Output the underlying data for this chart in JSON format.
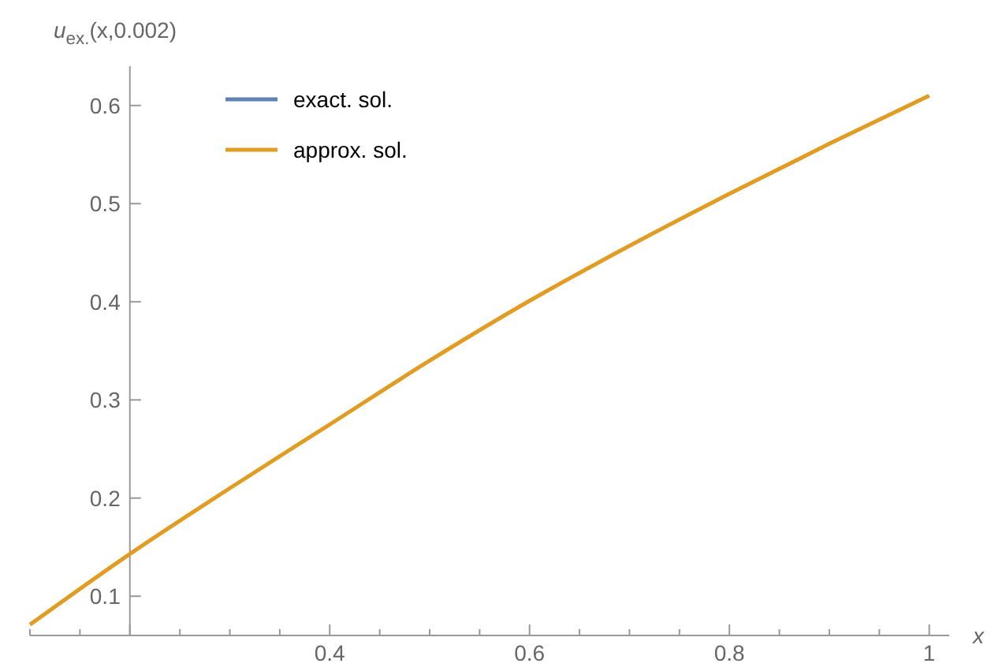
{
  "chart_data": {
    "type": "line",
    "xlabel": "x",
    "ylabel": "u$_{ex.}$(x,0.002)",
    "x": [
      0.1,
      0.2,
      0.3,
      0.4,
      0.5,
      0.6,
      0.7,
      0.8,
      0.9,
      1.0
    ],
    "series": [
      {
        "name": "exact. sol.",
        "color": "#5e81b5",
        "values": [
          null,
          null,
          null,
          null,
          null,
          null,
          null,
          null,
          null,
          null
        ]
      },
      {
        "name": "approx. sol.",
        "color": "#e19c24",
        "values": [
          0.071,
          0.143,
          0.21,
          0.275,
          0.34,
          0.401,
          0.457,
          0.51,
          0.561,
          0.61
        ]
      }
    ],
    "xlim": [
      0.1,
      1.02
    ],
    "ylim": [
      0.06,
      0.64
    ],
    "xticks": [
      {
        "value": 0.2,
        "label": null
      },
      0.4,
      0.6,
      0.8,
      1.0,
      {
        "value": 0.1,
        "label": null
      },
      {
        "value": 0.15,
        "label": null
      },
      {
        "value": 0.25,
        "label": null
      },
      {
        "value": 0.3,
        "label": null
      },
      {
        "value": 0.35,
        "label": null
      },
      {
        "value": 0.45,
        "label": null
      },
      {
        "value": 0.5,
        "label": null
      },
      {
        "value": 0.55,
        "label": null
      },
      {
        "value": 0.65,
        "label": null
      },
      {
        "value": 0.7,
        "label": null
      },
      {
        "value": 0.75,
        "label": null
      },
      {
        "value": 0.85,
        "label": null
      },
      {
        "value": 0.9,
        "label": null
      },
      {
        "value": 0.95,
        "label": null
      }
    ],
    "yticks": [
      0.1,
      0.2,
      0.3,
      0.4,
      0.5,
      0.6
    ],
    "legend": "top left",
    "grid": false,
    "marker": "none",
    "line_style": "solid"
  }
}
